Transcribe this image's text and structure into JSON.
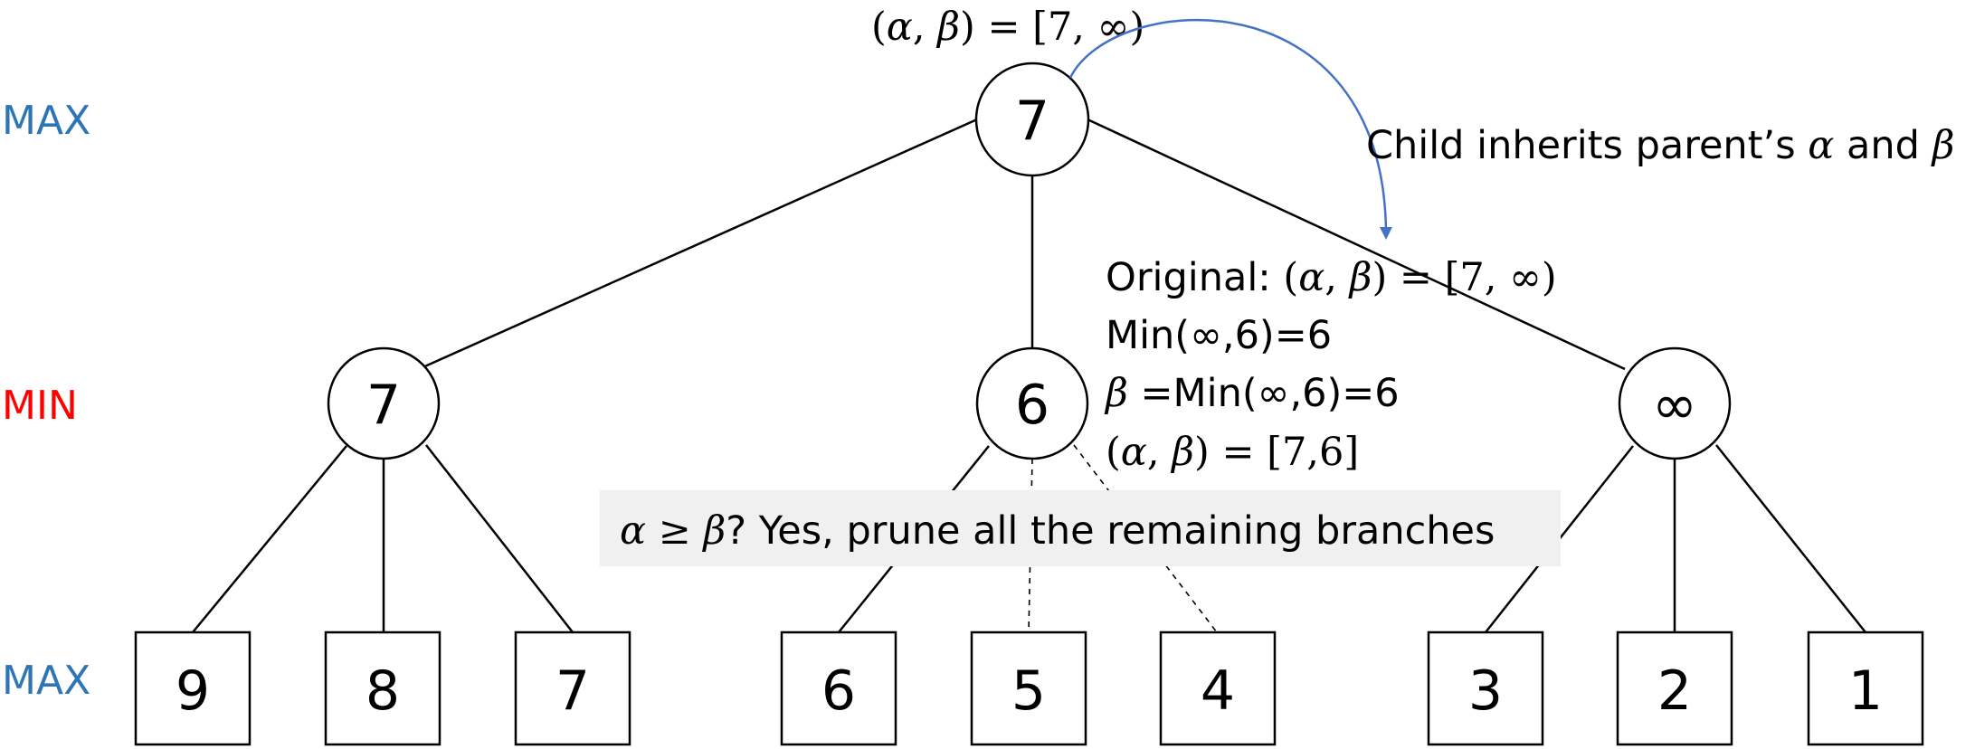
{
  "levels": {
    "top": "MAX",
    "middle": "MIN",
    "bottom": "MAX"
  },
  "colors": {
    "max_label": "#2e75b6",
    "min_label": "#ff0000",
    "arrow": "#4472c4",
    "prune_box_bg": "#f0f0f0"
  },
  "root": {
    "value": "7",
    "window": {
      "prefix": "(",
      "alpha": "α",
      "comma": ", ",
      "beta": "β",
      "suffix": ") = [7, ∞)"
    }
  },
  "min_nodes": [
    "7",
    "6",
    "∞"
  ],
  "leaves": [
    "9",
    "8",
    "7",
    "6",
    "5",
    "4",
    "3",
    "2",
    "1"
  ],
  "inherit_note": {
    "text": "Child inherits parent’s ",
    "alpha": "α",
    "and": " and ",
    "beta": "β"
  },
  "steps": {
    "line1_label": "Original: ",
    "line1_window": {
      "prefix": "(",
      "alpha": "α",
      "comma": ", ",
      "beta": "β",
      "suffix": ") = [7, ∞)"
    },
    "line2": "Min(∞,6)=6",
    "line3_beta": "β",
    "line3_rest": " =Min(∞,6)=6",
    "line4_window": {
      "prefix": "(",
      "alpha": "α",
      "comma": ", ",
      "beta": "β",
      "suffix": ") = [7,6]"
    }
  },
  "prune_note": {
    "condition": "α ≥ β",
    "text": "? Yes, prune all the remaining branches"
  }
}
